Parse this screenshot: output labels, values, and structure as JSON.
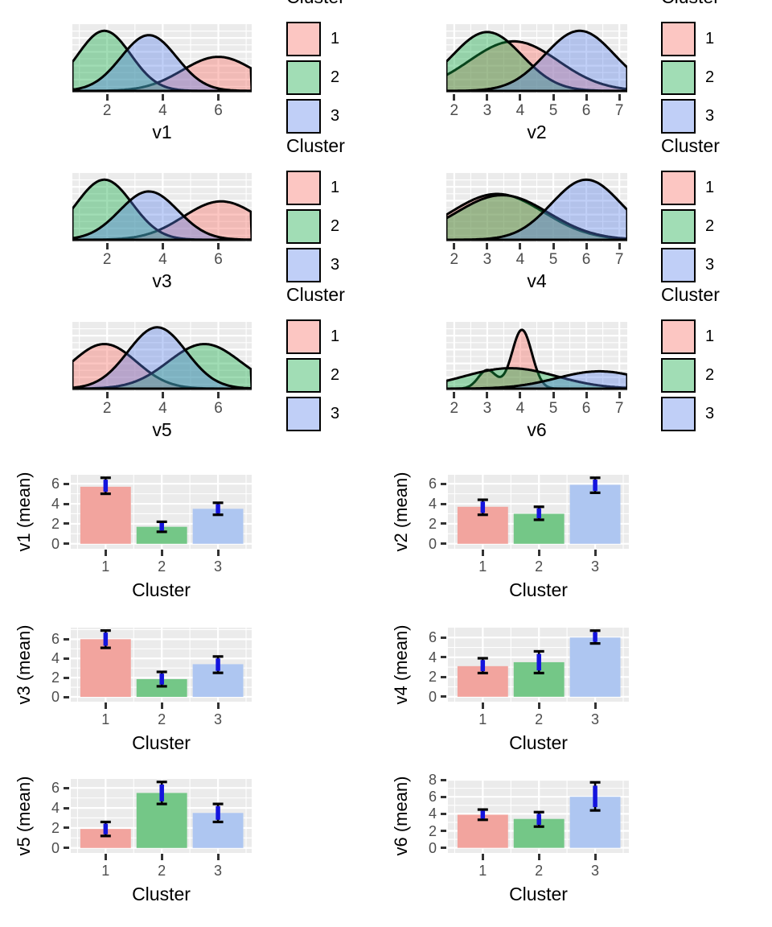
{
  "page_background": "#FFFFFF",
  "colors": {
    "panel_background": "#EBEBEB",
    "gridline": "#FFFFFF",
    "axis_text": "#4D4D4D",
    "axis_title": "#000000",
    "curve_stroke": "#000000",
    "errorbar_line": "#000000",
    "errorbar_overlay": "#1414DD",
    "density_fills": {
      "1": "rgba(248,118,109,0.42)",
      "2": "rgba(20,170,70,0.40)",
      "3": "rgba(90,130,235,0.38)"
    },
    "bar_fills": {
      "1": "#F2A49E",
      "2": "#74C787",
      "3": "#AEC6F1"
    }
  },
  "legend": {
    "title": "Cluster",
    "items": [
      {
        "label": "1"
      },
      {
        "label": "2"
      },
      {
        "label": "3"
      }
    ]
  },
  "chart_data": [
    {
      "type": "density",
      "xlabel": "v1",
      "x_ticks": [
        2,
        4,
        6
      ],
      "xlim": [
        0.75,
        7.2
      ],
      "legend": true,
      "series": [
        {
          "cluster": "1",
          "components": [
            {
              "mu": 6.0,
              "sigma": 1.3,
              "peak": 0.55
            }
          ]
        },
        {
          "cluster": "2",
          "components": [
            {
              "mu": 1.9,
              "sigma": 0.95,
              "peak": 0.97
            }
          ]
        },
        {
          "cluster": "3",
          "components": [
            {
              "mu": 3.5,
              "sigma": 1.0,
              "peak": 0.9
            }
          ]
        }
      ]
    },
    {
      "type": "density",
      "xlabel": "v2",
      "x_ticks": [
        2,
        3,
        4,
        5,
        6,
        7
      ],
      "xlim": [
        1.76,
        7.24
      ],
      "legend": true,
      "series": [
        {
          "cluster": "1",
          "components": [
            {
              "mu": 3.8,
              "sigma": 1.35,
              "peak": 0.8
            }
          ]
        },
        {
          "cluster": "2",
          "components": [
            {
              "mu": 3.0,
              "sigma": 1.05,
              "peak": 0.95
            }
          ]
        },
        {
          "cluster": "3",
          "components": [
            {
              "mu": 5.8,
              "sigma": 1.05,
              "peak": 0.97
            }
          ]
        }
      ]
    },
    {
      "type": "density",
      "xlabel": "v3",
      "x_ticks": [
        2,
        4,
        6
      ],
      "xlim": [
        0.75,
        7.2
      ],
      "legend": true,
      "series": [
        {
          "cluster": "1",
          "components": [
            {
              "mu": 6.1,
              "sigma": 1.35,
              "peak": 0.62
            }
          ]
        },
        {
          "cluster": "2",
          "components": [
            {
              "mu": 1.9,
              "sigma": 1.0,
              "peak": 0.97
            }
          ]
        },
        {
          "cluster": "3",
          "components": [
            {
              "mu": 3.5,
              "sigma": 1.05,
              "peak": 0.78
            }
          ]
        }
      ]
    },
    {
      "type": "density",
      "xlabel": "v4",
      "x_ticks": [
        2,
        3,
        4,
        5,
        6,
        7
      ],
      "xlim": [
        1.76,
        7.24
      ],
      "legend": true,
      "series": [
        {
          "cluster": "1",
          "components": [
            {
              "mu": 3.3,
              "sigma": 1.4,
              "peak": 0.74
            }
          ]
        },
        {
          "cluster": "2",
          "components": [
            {
              "mu": 3.45,
              "sigma": 1.4,
              "peak": 0.72
            }
          ]
        },
        {
          "cluster": "3",
          "components": [
            {
              "mu": 6.0,
              "sigma": 1.05,
              "peak": 0.97
            }
          ]
        }
      ]
    },
    {
      "type": "density",
      "xlabel": "v5",
      "x_ticks": [
        2,
        4,
        6
      ],
      "xlim": [
        0.75,
        7.2
      ],
      "legend": true,
      "series": [
        {
          "cluster": "1",
          "components": [
            {
              "mu": 1.9,
              "sigma": 1.15,
              "peak": 0.72
            }
          ]
        },
        {
          "cluster": "2",
          "components": [
            {
              "mu": 5.5,
              "sigma": 1.3,
              "peak": 0.72
            }
          ]
        },
        {
          "cluster": "3",
          "components": [
            {
              "mu": 3.8,
              "sigma": 1.05,
              "peak": 0.99
            }
          ]
        }
      ]
    },
    {
      "type": "density",
      "xlabel": "v6",
      "x_ticks": [
        2,
        3,
        4,
        5,
        6,
        7
      ],
      "xlim": [
        1.76,
        7.24
      ],
      "legend": true,
      "series": [
        {
          "cluster": "1",
          "components": [
            {
              "mu": 3.0,
              "sigma": 0.27,
              "peak": 0.3
            },
            {
              "mu": 4.05,
              "sigma": 0.3,
              "peak": 0.95
            }
          ]
        },
        {
          "cluster": "2",
          "components": [
            {
              "mu": 3.7,
              "sigma": 1.4,
              "peak": 0.33
            }
          ]
        },
        {
          "cluster": "3",
          "components": [
            {
              "mu": 6.4,
              "sigma": 1.3,
              "peak": 0.28
            }
          ]
        }
      ]
    },
    {
      "type": "bar",
      "xlabel": "Cluster",
      "ylabel": "v1 (mean)",
      "categories": [
        "1",
        "2",
        "3"
      ],
      "values": [
        5.7,
        1.7,
        3.5
      ],
      "error_low": [
        5.0,
        1.2,
        2.9
      ],
      "error_high": [
        6.6,
        2.2,
        4.1
      ],
      "y_ticks": [
        0,
        2,
        4,
        6
      ],
      "ylim": [
        -0.5,
        6.9
      ],
      "xlim": [
        0.38,
        3.6
      ]
    },
    {
      "type": "bar",
      "xlabel": "Cluster",
      "ylabel": "v2 (mean)",
      "categories": [
        "1",
        "2",
        "3"
      ],
      "values": [
        3.7,
        3.0,
        5.9
      ],
      "error_low": [
        2.9,
        2.4,
        5.1
      ],
      "error_high": [
        4.4,
        3.7,
        6.6
      ],
      "y_ticks": [
        0,
        2,
        4,
        6
      ],
      "ylim": [
        -0.5,
        6.9
      ],
      "xlim": [
        0.38,
        3.6
      ]
    },
    {
      "type": "bar",
      "xlabel": "Cluster",
      "ylabel": "v3 (mean)",
      "categories": [
        "1",
        "2",
        "3"
      ],
      "values": [
        6.0,
        1.85,
        3.4
      ],
      "error_low": [
        5.1,
        1.1,
        2.5
      ],
      "error_high": [
        6.9,
        2.6,
        4.2
      ],
      "y_ticks": [
        0,
        2,
        4,
        6
      ],
      "ylim": [
        -0.5,
        7.2
      ],
      "xlim": [
        0.38,
        3.6
      ]
    },
    {
      "type": "bar",
      "xlabel": "Cluster",
      "ylabel": "v4 (mean)",
      "categories": [
        "1",
        "2",
        "3"
      ],
      "values": [
        3.1,
        3.5,
        6.0
      ],
      "error_low": [
        2.4,
        2.4,
        5.4
      ],
      "error_high": [
        3.9,
        4.6,
        6.7
      ],
      "y_ticks": [
        0,
        2,
        4,
        6
      ],
      "ylim": [
        -0.5,
        7.0
      ],
      "xlim": [
        0.38,
        3.6
      ]
    },
    {
      "type": "bar",
      "xlabel": "Cluster",
      "ylabel": "v5 (mean)",
      "categories": [
        "1",
        "2",
        "3"
      ],
      "values": [
        1.9,
        5.5,
        3.5
      ],
      "error_low": [
        1.2,
        4.4,
        2.6
      ],
      "error_high": [
        2.6,
        6.6,
        4.4
      ],
      "y_ticks": [
        0,
        2,
        4,
        6
      ],
      "ylim": [
        -0.5,
        6.9
      ],
      "xlim": [
        0.38,
        3.6
      ]
    },
    {
      "type": "bar",
      "xlabel": "Cluster",
      "ylabel": "v6 (mean)",
      "categories": [
        "1",
        "2",
        "3"
      ],
      "values": [
        3.9,
        3.4,
        6.0
      ],
      "error_low": [
        3.3,
        2.5,
        4.4
      ],
      "error_high": [
        4.5,
        4.2,
        7.7
      ],
      "y_ticks": [
        0,
        2,
        4,
        6,
        8
      ],
      "ylim": [
        -0.6,
        8.1
      ],
      "xlim": [
        0.38,
        3.6
      ]
    }
  ]
}
